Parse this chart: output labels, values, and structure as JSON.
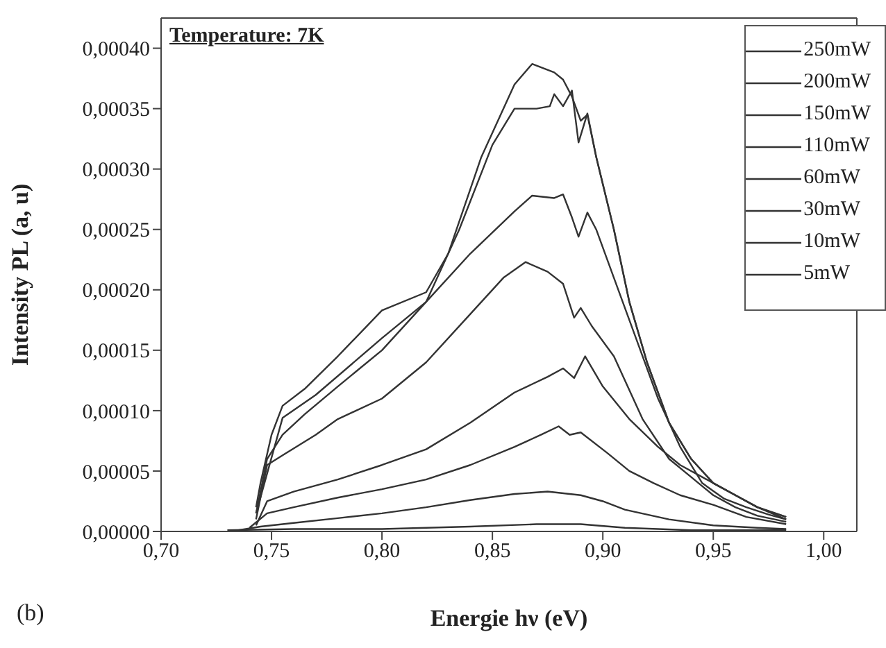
{
  "chart_data": {
    "type": "line",
    "xlabel": "Energie hν (eV)",
    "ylabel": "Intensity PL (a, u)",
    "annotations": [
      "Temperature: 7K",
      "(b)"
    ],
    "xlim": [
      0.7,
      1.015
    ],
    "ylim": [
      0,
      0.000425
    ],
    "xticks": [
      {
        "value": 0.7,
        "label": "0,70"
      },
      {
        "value": 0.75,
        "label": "0,75"
      },
      {
        "value": 0.8,
        "label": "0,80"
      },
      {
        "value": 0.85,
        "label": "0,85"
      },
      {
        "value": 0.9,
        "label": "0,90"
      },
      {
        "value": 0.95,
        "label": "0,95"
      },
      {
        "value": 1.0,
        "label": "1,00"
      }
    ],
    "yticks": [
      {
        "value": 0,
        "label": "0,00000"
      },
      {
        "value": 5e-05,
        "label": "0,00005"
      },
      {
        "value": 0.0001,
        "label": "0,00010"
      },
      {
        "value": 0.00015,
        "label": "0,00015"
      },
      {
        "value": 0.0002,
        "label": "0,00020"
      },
      {
        "value": 0.00025,
        "label": "0,00025"
      },
      {
        "value": 0.0003,
        "label": "0,00030"
      },
      {
        "value": 0.00035,
        "label": "0,00035"
      },
      {
        "value": 0.0004,
        "label": "0,00040"
      }
    ],
    "legend": "top right",
    "marker": "none",
    "line_style": "solid",
    "series": [
      {
        "name": "250mW",
        "color": "#333333",
        "x": [
          0.743,
          0.745,
          0.75,
          0.755,
          0.765,
          0.78,
          0.8,
          0.82,
          0.83,
          0.845,
          0.86,
          0.868,
          0.878,
          0.882,
          0.886,
          0.89,
          0.893,
          0.897,
          0.905,
          0.912,
          0.92,
          0.93,
          0.94,
          0.95,
          0.96,
          0.97,
          0.983
        ],
        "values": [
          2e-05,
          4e-05,
          8e-05,
          0.000104,
          0.000118,
          0.000145,
          0.000183,
          0.000198,
          0.00023,
          0.00031,
          0.00037,
          0.000387,
          0.00038,
          0.000374,
          0.00036,
          0.00034,
          0.000345,
          0.00031,
          0.00025,
          0.00019,
          0.00014,
          9e-05,
          6e-05,
          4e-05,
          3e-05,
          2e-05,
          1.2e-05
        ]
      },
      {
        "name": "200mW",
        "color": "#333333",
        "x": [
          0.743,
          0.755,
          0.77,
          0.8,
          0.82,
          0.835,
          0.85,
          0.86,
          0.87,
          0.876,
          0.878,
          0.882,
          0.886,
          0.889,
          0.893,
          0.897,
          0.905,
          0.912,
          0.92,
          0.93,
          0.94,
          0.95,
          0.96,
          0.97,
          0.983
        ],
        "values": [
          1.5e-05,
          9.4e-05,
          0.000113,
          0.00016,
          0.00019,
          0.00025,
          0.00032,
          0.00035,
          0.00035,
          0.000352,
          0.000362,
          0.000352,
          0.000365,
          0.000322,
          0.000346,
          0.00031,
          0.00025,
          0.00019,
          0.00014,
          9e-05,
          6e-05,
          4e-05,
          3e-05,
          2e-05,
          1.2e-05
        ]
      },
      {
        "name": "150mW",
        "color": "#333333",
        "x": [
          0.743,
          0.748,
          0.755,
          0.765,
          0.78,
          0.8,
          0.82,
          0.84,
          0.86,
          0.868,
          0.878,
          0.882,
          0.886,
          0.889,
          0.893,
          0.897,
          0.905,
          0.915,
          0.925,
          0.935,
          0.945,
          0.955,
          0.965,
          0.975,
          0.983
        ],
        "values": [
          1.5e-05,
          6e-05,
          8e-05,
          9.7e-05,
          0.00012,
          0.00015,
          0.00019,
          0.00023,
          0.000265,
          0.000278,
          0.000276,
          0.000279,
          0.00026,
          0.000244,
          0.000264,
          0.00025,
          0.00021,
          0.00016,
          0.00011,
          7e-05,
          4e-05,
          2.7e-05,
          2e-05,
          1.4e-05,
          1e-05
        ]
      },
      {
        "name": "110mW",
        "color": "#333333",
        "x": [
          0.743,
          0.748,
          0.755,
          0.77,
          0.78,
          0.8,
          0.82,
          0.84,
          0.855,
          0.865,
          0.875,
          0.882,
          0.887,
          0.89,
          0.895,
          0.905,
          0.918,
          0.93,
          0.94,
          0.95,
          0.96,
          0.97,
          0.983
        ],
        "values": [
          1e-05,
          5.5e-05,
          6.3e-05,
          8e-05,
          9.3e-05,
          0.00011,
          0.00014,
          0.00018,
          0.00021,
          0.000223,
          0.000215,
          0.000205,
          0.000177,
          0.000185,
          0.00017,
          0.000145,
          9.3e-05,
          6e-05,
          4.5e-05,
          3e-05,
          2e-05,
          1.3e-05,
          8e-06
        ]
      },
      {
        "name": "60mW",
        "color": "#333333",
        "x": [
          0.743,
          0.748,
          0.76,
          0.78,
          0.8,
          0.82,
          0.84,
          0.86,
          0.875,
          0.882,
          0.887,
          0.892,
          0.9,
          0.912,
          0.925,
          0.935,
          0.945,
          0.955,
          0.97,
          0.983
        ],
        "values": [
          5e-06,
          2.5e-05,
          3.3e-05,
          4.3e-05,
          5.5e-05,
          6.8e-05,
          9e-05,
          0.000115,
          0.000128,
          0.000135,
          0.000127,
          0.000145,
          0.00012,
          9.3e-05,
          7e-05,
          5.5e-05,
          4.5e-05,
          3.5e-05,
          2e-05,
          1e-05
        ]
      },
      {
        "name": "30mW",
        "color": "#333333",
        "x": [
          0.74,
          0.748,
          0.76,
          0.78,
          0.8,
          0.82,
          0.84,
          0.86,
          0.872,
          0.88,
          0.885,
          0.89,
          0.902,
          0.912,
          0.923,
          0.935,
          0.95,
          0.965,
          0.983
        ],
        "values": [
          3e-06,
          1.5e-05,
          2e-05,
          2.8e-05,
          3.5e-05,
          4.3e-05,
          5.5e-05,
          7e-05,
          8e-05,
          8.7e-05,
          8e-05,
          8.2e-05,
          6.5e-05,
          5e-05,
          4e-05,
          3e-05,
          2.2e-05,
          1.2e-05,
          6e-06
        ]
      },
      {
        "name": "10mW",
        "color": "#333333",
        "x": [
          0.735,
          0.745,
          0.76,
          0.78,
          0.8,
          0.82,
          0.84,
          0.86,
          0.875,
          0.89,
          0.9,
          0.91,
          0.93,
          0.95,
          0.97,
          0.983
        ],
        "values": [
          1e-06,
          4e-06,
          7e-06,
          1.1e-05,
          1.5e-05,
          2e-05,
          2.6e-05,
          3.1e-05,
          3.3e-05,
          3e-05,
          2.5e-05,
          1.8e-05,
          1e-05,
          5e-06,
          3e-06,
          2e-06
        ]
      },
      {
        "name": "5mW",
        "color": "#333333",
        "x": [
          0.73,
          0.76,
          0.8,
          0.84,
          0.87,
          0.89,
          0.91,
          0.94,
          0.983
        ],
        "values": [
          1e-06,
          2e-06,
          2e-06,
          4e-06,
          6e-06,
          6e-06,
          3e-06,
          1e-06,
          1e-06
        ]
      }
    ]
  }
}
